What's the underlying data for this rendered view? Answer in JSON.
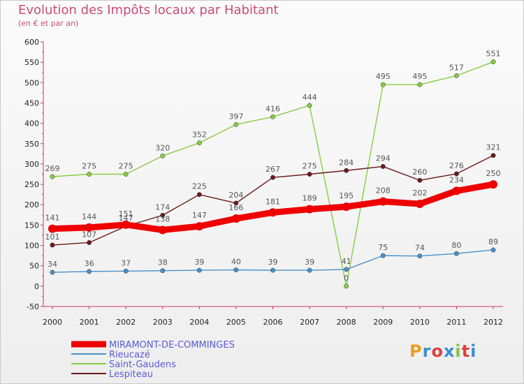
{
  "header": {
    "title": "Evolution des Impôts locaux par Habitant",
    "subtitle": "(en € et par an)"
  },
  "logo": {
    "text": "Proxiti",
    "colors": [
      "#e8a020",
      "#3a8fd0",
      "#e04040",
      "#3a8fd0",
      "#88c040",
      "#e04040",
      "#3a8fd0"
    ]
  },
  "chart_data": {
    "type": "line",
    "x": [
      "2000",
      "2001",
      "2002",
      "2003",
      "2004",
      "2005",
      "2006",
      "2007",
      "2008",
      "2009",
      "2010",
      "2011",
      "2012"
    ],
    "ylim": [
      -50,
      600
    ],
    "yticks": [
      -50,
      0,
      50,
      100,
      150,
      200,
      250,
      300,
      350,
      400,
      450,
      500,
      550,
      600
    ],
    "grid": false,
    "legend_position": "bottom-left",
    "series": [
      {
        "name": "Saint-Gaudens",
        "color": "#88cc44",
        "values": [
          269,
          275,
          275,
          320,
          352,
          397,
          416,
          444,
          0,
          495,
          495,
          517,
          551
        ],
        "width": "thin"
      },
      {
        "name": "Lespiteau",
        "color": "#6b1a1a",
        "values": [
          101,
          107,
          147,
          174,
          225,
          204,
          267,
          275,
          284,
          294,
          260,
          276,
          321
        ],
        "width": "thin"
      },
      {
        "name": "Rieucazé",
        "color": "#4a90c8",
        "values": [
          34,
          36,
          37,
          38,
          39,
          40,
          39,
          39,
          41,
          75,
          74,
          80,
          89
        ],
        "width": "thin"
      },
      {
        "name": "MIRAMONT-DE-COMMINGES",
        "color": "#ee0000",
        "values": [
          141,
          144,
          151,
          138,
          147,
          166,
          181,
          189,
          195,
          208,
          202,
          234,
          250
        ],
        "width": "thick"
      }
    ],
    "legend_order": [
      "MIRAMONT-DE-COMMINGES",
      "Rieucazé",
      "Saint-Gaudens",
      "Lespiteau"
    ]
  }
}
